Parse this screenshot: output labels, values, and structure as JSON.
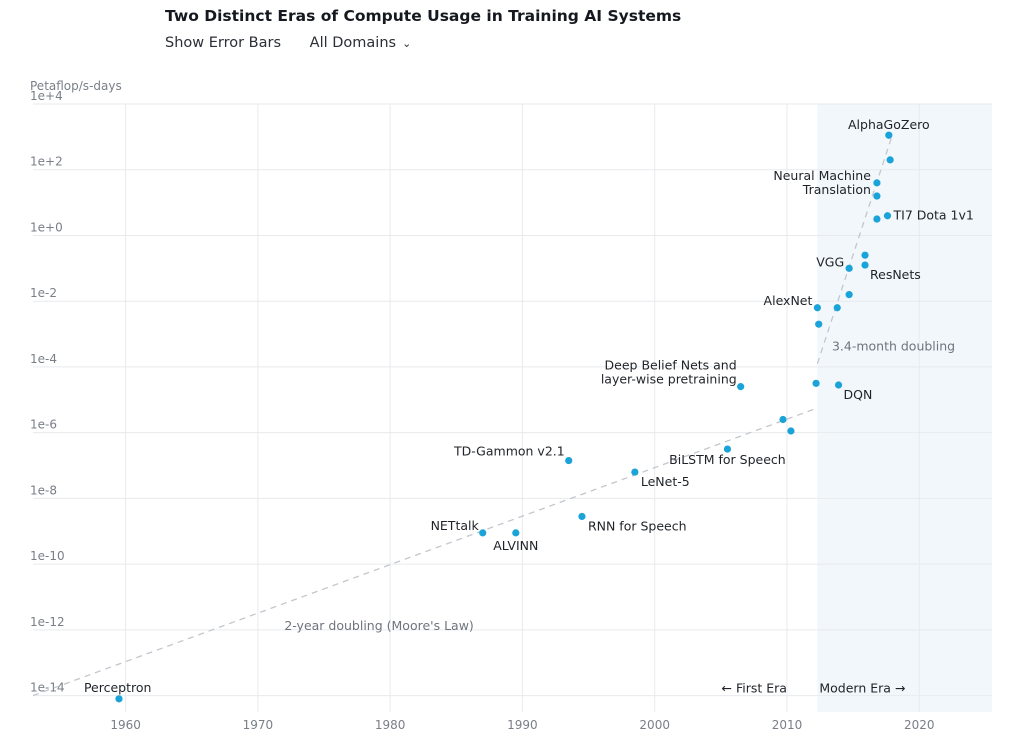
{
  "header": {
    "title": "Two Distinct Eras of Compute Usage in Training AI Systems",
    "error_bars_label": "Show Error Bars",
    "domains_label": "All Domains",
    "domains_icon": "chevron-down-icon"
  },
  "colors": {
    "point": "#1aa3d9",
    "modern_band": "#f1f7fb",
    "grid": "#e8eaed",
    "trend": "#c2c7cd"
  },
  "chart_data": {
    "type": "scatter",
    "title": "Two Distinct Eras of Compute Usage in Training AI Systems",
    "xlabel": "",
    "ylabel": "Petaflop/s-days",
    "y_scale": "log",
    "xlim": [
      1953,
      2025.5
    ],
    "ylim_exp": [
      -14.5,
      4
    ],
    "x_ticks": [
      1960,
      1970,
      1980,
      1990,
      2000,
      2010,
      2020
    ],
    "y_ticks": [
      {
        "exp": 4,
        "label": "1e+4"
      },
      {
        "exp": 2,
        "label": "1e+2"
      },
      {
        "exp": 0,
        "label": "1e+0"
      },
      {
        "exp": -2,
        "label": "1e-2"
      },
      {
        "exp": -4,
        "label": "1e-4"
      },
      {
        "exp": -6,
        "label": "1e-6"
      },
      {
        "exp": -8,
        "label": "1e-8"
      },
      {
        "exp": -10,
        "label": "1e-10"
      },
      {
        "exp": -12,
        "label": "1e-12"
      },
      {
        "exp": -14,
        "label": "1e-14"
      }
    ],
    "grid": true,
    "modern_era_start": 2012.3,
    "points": [
      {
        "year": 1959.5,
        "log10_pfsdays": -14.1,
        "label": "Perceptron",
        "anchor": "start",
        "dx": -35,
        "dy": -7
      },
      {
        "year": 1987.0,
        "log10_pfsdays": -9.05,
        "label": "NETtalk",
        "anchor": "end",
        "dx": -4,
        "dy": -3
      },
      {
        "year": 1989.5,
        "log10_pfsdays": -9.05,
        "label": "ALVINN",
        "anchor": "middle",
        "dx": 0,
        "dy": 17
      },
      {
        "year": 1993.5,
        "log10_pfsdays": -6.85,
        "label": "TD-Gammon v2.1",
        "anchor": "end",
        "dx": -4,
        "dy": -5
      },
      {
        "year": 1994.5,
        "log10_pfsdays": -8.55,
        "label": "RNN for Speech",
        "anchor": "start",
        "dx": 6,
        "dy": 14
      },
      {
        "year": 1998.5,
        "log10_pfsdays": -7.2,
        "label": "LeNet-5",
        "anchor": "start",
        "dx": 6,
        "dy": 14
      },
      {
        "year": 2005.5,
        "log10_pfsdays": -6.5,
        "label": "BiLSTM for Speech",
        "anchor": "middle",
        "dx": 0,
        "dy": 15
      },
      {
        "year": 2006.5,
        "log10_pfsdays": -4.6,
        "label": "Deep Belief Nets and layer-wise pretraining",
        "lines": [
          "Deep Belief Nets and",
          "layer-wise pretraining"
        ],
        "anchor": "end",
        "dx": -4,
        "dy": -17
      },
      {
        "year": 2009.7,
        "log10_pfsdays": -5.6,
        "label": "",
        "anchor": "start",
        "dx": 0,
        "dy": 0
      },
      {
        "year": 2010.3,
        "log10_pfsdays": -5.95,
        "label": "",
        "anchor": "start",
        "dx": 0,
        "dy": 0
      },
      {
        "year": 2012.2,
        "log10_pfsdays": -4.5,
        "label": "",
        "anchor": "start",
        "dx": 0,
        "dy": 0
      },
      {
        "year": 2013.9,
        "log10_pfsdays": -4.55,
        "label": "DQN",
        "anchor": "start",
        "dx": 5,
        "dy": 14
      },
      {
        "year": 2012.4,
        "log10_pfsdays": -2.7,
        "label": "",
        "anchor": "start",
        "dx": 0,
        "dy": 0
      },
      {
        "year": 2012.3,
        "log10_pfsdays": -2.2,
        "label": "AlexNet",
        "anchor": "end",
        "dx": -5,
        "dy": -3
      },
      {
        "year": 2013.8,
        "log10_pfsdays": -2.2,
        "label": "",
        "anchor": "start",
        "dx": 0,
        "dy": 0
      },
      {
        "year": 2014.7,
        "log10_pfsdays": -1.8,
        "label": "",
        "anchor": "start",
        "dx": 0,
        "dy": 0
      },
      {
        "year": 2014.7,
        "log10_pfsdays": -1.0,
        "label": "VGG",
        "anchor": "end",
        "dx": -5,
        "dy": -2
      },
      {
        "year": 2015.9,
        "log10_pfsdays": -0.9,
        "label": "ResNets",
        "anchor": "start",
        "dx": 5,
        "dy": 14
      },
      {
        "year": 2015.9,
        "log10_pfsdays": -0.6,
        "label": "",
        "anchor": "start",
        "dx": 0,
        "dy": 0
      },
      {
        "year": 2016.8,
        "log10_pfsdays": 0.5,
        "label": "",
        "anchor": "start",
        "dx": 0,
        "dy": 0
      },
      {
        "year": 2017.6,
        "log10_pfsdays": 0.6,
        "label": "TI7 Dota 1v1",
        "anchor": "start",
        "dx": 6,
        "dy": 4
      },
      {
        "year": 2016.8,
        "log10_pfsdays": 1.6,
        "label": "Neural Machine Translation",
        "lines": [
          "Neural Machine",
          "Translation"
        ],
        "anchor": "end",
        "dx": -6,
        "dy": -3
      },
      {
        "year": 2016.8,
        "log10_pfsdays": 1.2,
        "label": "",
        "anchor": "start",
        "dx": 0,
        "dy": 0
      },
      {
        "year": 2017.8,
        "log10_pfsdays": 2.3,
        "label": "",
        "anchor": "start",
        "dx": 0,
        "dy": 0
      },
      {
        "year": 2017.7,
        "log10_pfsdays": 3.05,
        "label": "AlphaGoZero",
        "anchor": "middle",
        "dx": 0,
        "dy": -6
      }
    ],
    "trend_lines": [
      {
        "label": "2-year doubling (Moore's Law)",
        "x": [
          1953,
          2012.3
        ],
        "log10_y": [
          -14.0,
          -5.25
        ]
      },
      {
        "label": "3.4-month doubling",
        "x": [
          2012.3,
          2018.0
        ],
        "log10_y": [
          -3.9,
          3.1
        ]
      }
    ],
    "annotations": [
      {
        "text": "2-year doubling (Moore's Law)",
        "year": 1972.0,
        "log10_pfsdays": -12.0
      },
      {
        "text": "3.4-month doubling",
        "year": 2013.4,
        "log10_pfsdays": -3.5
      },
      {
        "text": "← First Era",
        "year": 2010.0,
        "log10_pfsdays": -13.9,
        "anchor": "end"
      },
      {
        "text": "Modern Era →",
        "year": 2015.7,
        "log10_pfsdays": -13.9,
        "anchor": "middle"
      }
    ]
  }
}
